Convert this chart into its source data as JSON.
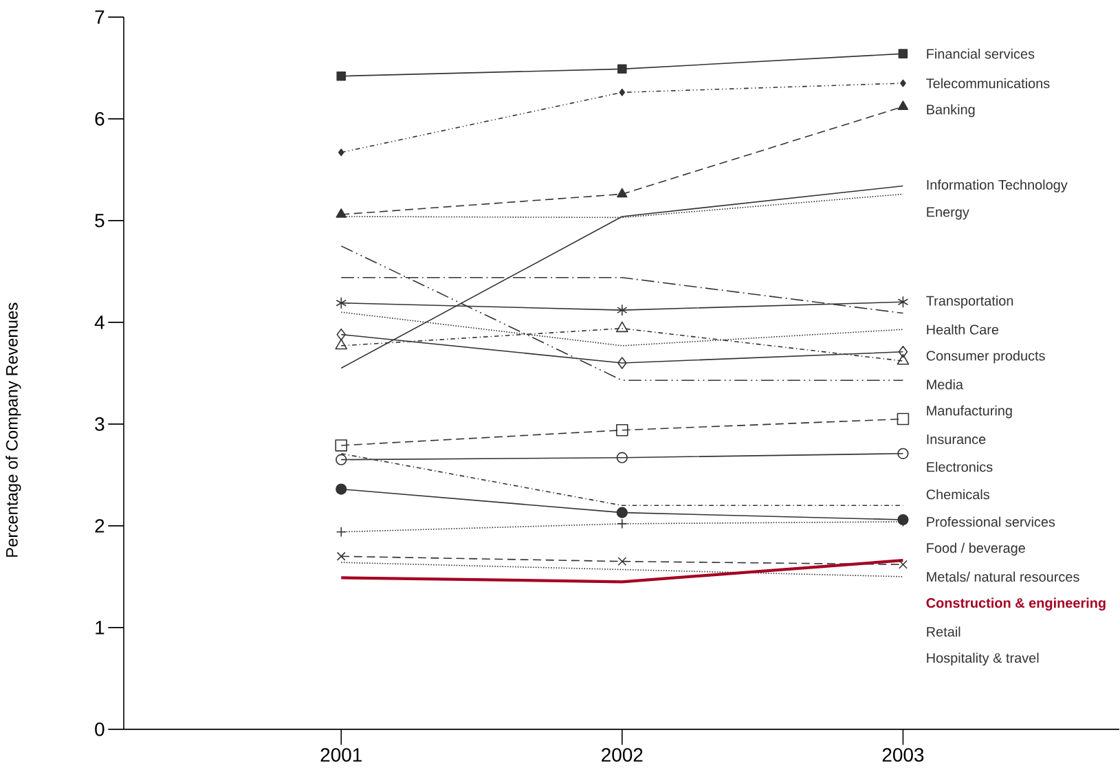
{
  "chart_data": {
    "type": "line",
    "ylabel": "Percentage of Company Revenues",
    "categories": [
      "2001",
      "2002",
      "2003"
    ],
    "ylim": [
      0,
      7
    ],
    "yticks": [
      0,
      1,
      2,
      3,
      4,
      5,
      6,
      7
    ],
    "grid": false,
    "legend": false,
    "series": [
      {
        "name": "Financial services",
        "color": "#333333",
        "values": [
          6.42,
          6.49,
          6.64
        ],
        "line_style": "solid",
        "marker": "square"
      },
      {
        "name": "Telecommunications",
        "color": "#333333",
        "values": [
          5.67,
          6.26,
          6.35
        ],
        "line_style": "dashdotdot",
        "marker": "diamond"
      },
      {
        "name": "Banking",
        "color": "#333333",
        "values": [
          5.06,
          5.26,
          6.12
        ],
        "line_style": "dashed",
        "marker": "triangle"
      },
      {
        "name": "Information Technology",
        "color": "#333333",
        "values": [
          3.55,
          5.04,
          5.34
        ],
        "line_style": "solid",
        "marker": "none"
      },
      {
        "name": "Energy",
        "color": "#333333",
        "values": [
          5.04,
          5.03,
          5.26
        ],
        "line_style": "dotted",
        "marker": "none"
      },
      {
        "name": "Insurance",
        "color": "#333333",
        "values": [
          4.75,
          3.43,
          3.43
        ],
        "line_style": "longdashdotdot",
        "marker": "none"
      },
      {
        "name": "Health Care",
        "color": "#333333",
        "values": [
          4.44,
          4.44,
          4.09
        ],
        "line_style": "longdashdot",
        "marker": "none"
      },
      {
        "name": "Transportation",
        "color": "#333333",
        "values": [
          4.19,
          4.12,
          4.2
        ],
        "line_style": "solid",
        "marker": "cross"
      },
      {
        "name": "Consumer products",
        "color": "#333333",
        "values": [
          4.1,
          3.77,
          3.93
        ],
        "line_style": "dotted",
        "marker": "none"
      },
      {
        "name": "Media",
        "color": "#333333",
        "values": [
          3.88,
          3.6,
          3.71
        ],
        "line_style": "solid",
        "marker": "diamond-open"
      },
      {
        "name": "Manufacturing",
        "color": "#333333",
        "values": [
          3.77,
          3.94,
          3.62
        ],
        "line_style": "dashdot",
        "marker": "triangle-open"
      },
      {
        "name": "Electronics",
        "color": "#333333",
        "values": [
          2.79,
          2.94,
          3.05
        ],
        "line_style": "dashed",
        "marker": "square-open"
      },
      {
        "name": "Chemicals",
        "color": "#333333",
        "values": [
          2.65,
          2.67,
          2.71
        ],
        "line_style": "solid",
        "marker": "circle-open"
      },
      {
        "name": "Professional services",
        "color": "#333333",
        "values": [
          2.71,
          2.2,
          2.2
        ],
        "line_style": "dashdot",
        "marker": "none"
      },
      {
        "name": "Food / beverage",
        "color": "#333333",
        "values": [
          2.36,
          2.13,
          2.06
        ],
        "line_style": "solid",
        "marker": "circle"
      },
      {
        "name": "Metals/ natural resources",
        "color": "#333333",
        "values": [
          1.94,
          2.02,
          2.04
        ],
        "line_style": "dotted",
        "marker": "plus"
      },
      {
        "name": "Retail",
        "color": "#333333",
        "values": [
          1.7,
          1.65,
          1.62
        ],
        "line_style": "dashed",
        "marker": "x"
      },
      {
        "name": "Hospitality & travel",
        "color": "#333333",
        "values": [
          1.64,
          1.57,
          1.5
        ],
        "line_style": "dotted",
        "marker": "none"
      },
      {
        "name": "Construction & engineering",
        "color": "#a50021",
        "values": [
          1.49,
          1.45,
          1.66
        ],
        "line_style": "solid",
        "marker": "none"
      }
    ]
  }
}
